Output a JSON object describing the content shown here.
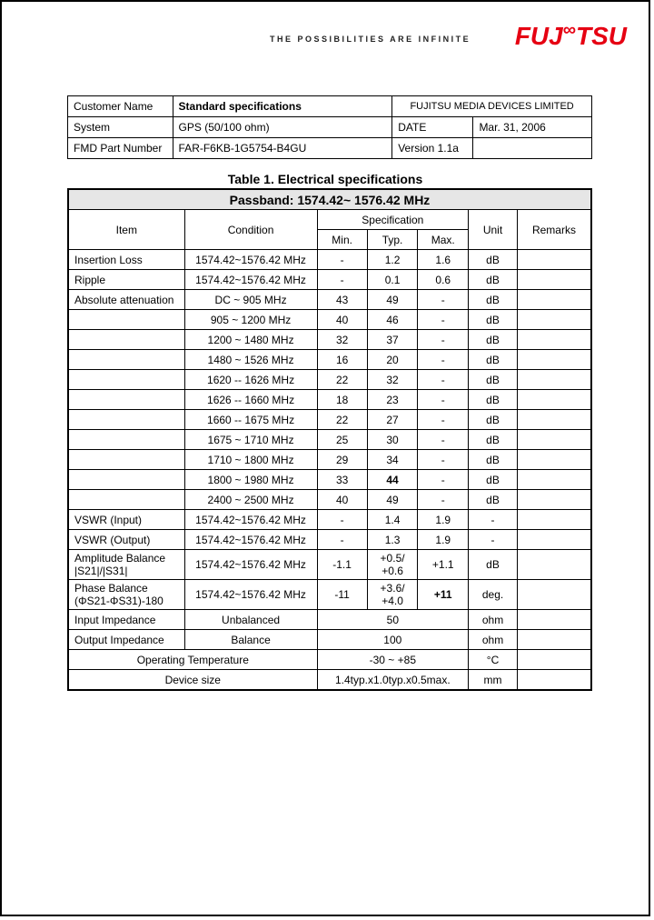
{
  "tagline": "THE POSSIBILITIES ARE INFINITE",
  "logo": "FUJITSU",
  "header": {
    "rows": [
      {
        "label": "Customer Name",
        "val": "Standard specifications",
        "valBold": true,
        "c3": "FUJITSU MEDIA DEVICES LIMITED",
        "c3span": true
      },
      {
        "label": "System",
        "val": "GPS (50/100 ohm)",
        "c3": "DATE",
        "c4": "Mar. 31, 2006"
      },
      {
        "label": "FMD Part Number",
        "val": "FAR-F6KB-1G5754-B4GU",
        "c3": "Version 1.1a",
        "c4": ""
      }
    ]
  },
  "tableTitle": "Table 1. Electrical specifications",
  "passband": "Passband: 1574.42~ 1576.42 MHz",
  "headers": {
    "item": "Item",
    "cond": "Condition",
    "spec": "Specification",
    "min": "Min.",
    "typ": "Typ.",
    "max": "Max.",
    "unit": "Unit",
    "rem": "Remarks"
  },
  "rows": [
    {
      "item": "Insertion Loss",
      "cond": "1574.42~1576.42 MHz",
      "min": "-",
      "typ": "1.2",
      "max": "1.6",
      "unit": "dB",
      "rem": ""
    },
    {
      "item": "Ripple",
      "cond": "1574.42~1576.42 MHz",
      "min": "-",
      "typ": "0.1",
      "max": "0.6",
      "unit": "dB",
      "rem": ""
    },
    {
      "item": "Absolute attenuation",
      "cond": "DC ~ 905 MHz",
      "min": "43",
      "typ": "49",
      "max": "-",
      "unit": "dB",
      "rem": ""
    },
    {
      "item": "",
      "cond": "905 ~ 1200 MHz",
      "min": "40",
      "typ": "46",
      "max": "-",
      "unit": "dB",
      "rem": ""
    },
    {
      "item": "",
      "cond": "1200 ~ 1480 MHz",
      "min": "32",
      "typ": "37",
      "max": "-",
      "unit": "dB",
      "rem": ""
    },
    {
      "item": "",
      "cond": "1480 ~ 1526 MHz",
      "min": "16",
      "typ": "20",
      "max": "-",
      "unit": "dB",
      "rem": ""
    },
    {
      "item": "",
      "cond": "1620 -- 1626 MHz",
      "min": "22",
      "typ": "32",
      "max": "-",
      "unit": "dB",
      "rem": ""
    },
    {
      "item": "",
      "cond": "1626 -- 1660 MHz",
      "min": "18",
      "typ": "23",
      "max": "-",
      "unit": "dB",
      "rem": ""
    },
    {
      "item": "",
      "cond": "1660 -- 1675 MHz",
      "min": "22",
      "typ": "27",
      "max": "-",
      "unit": "dB",
      "rem": ""
    },
    {
      "item": "",
      "cond": "1675 ~ 1710 MHz",
      "min": "25",
      "typ": "30",
      "max": "-",
      "unit": "dB",
      "rem": ""
    },
    {
      "item": "",
      "cond": "1710 ~ 1800 MHz",
      "min": "29",
      "typ": "34",
      "max": "-",
      "unit": "dB",
      "rem": ""
    },
    {
      "item": "",
      "cond": "1800 ~ 1980 MHz",
      "min": "33",
      "typ": "44",
      "typBold": true,
      "max": "-",
      "unit": "dB",
      "rem": ""
    },
    {
      "item": "",
      "cond": "2400 ~ 2500 MHz",
      "min": "40",
      "typ": "49",
      "max": "-",
      "unit": "dB",
      "rem": ""
    },
    {
      "item": "VSWR (Input)",
      "cond": "1574.42~1576.42 MHz",
      "min": "-",
      "typ": "1.4",
      "max": "1.9",
      "unit": "-",
      "rem": ""
    },
    {
      "item": "VSWR (Output)",
      "cond": "1574.42~1576.42 MHz",
      "min": "-",
      "typ": "1.3",
      "max": "1.9",
      "unit": "-",
      "rem": ""
    }
  ],
  "ampBalance": {
    "item": "Amplitude Balance |S21|/|S31|",
    "cond": "1574.42~1576.42 MHz",
    "min": "-1.1",
    "typ": "+0.5/ +0.6",
    "max": "+1.1",
    "unit": "dB",
    "rem": ""
  },
  "phaseBalance": {
    "item": "Phase Balance (ΦS21-ΦS31)-180",
    "cond": "1574.42~1576.42 MHz",
    "min": "-11",
    "typ": "+3.6/ +4.0",
    "max": "+11",
    "maxBold": true,
    "unit": "deg.",
    "rem": ""
  },
  "impedance": [
    {
      "item": "Input Impedance",
      "cond": "Unbalanced",
      "val": "50",
      "unit": "ohm",
      "rem": ""
    },
    {
      "item": "Output Impedance",
      "cond": "Balance",
      "val": "100",
      "unit": "ohm",
      "rem": ""
    }
  ],
  "last": [
    {
      "label": "Operating Temperature",
      "val": "-30 ~ +85",
      "unit": "°C",
      "rem": ""
    },
    {
      "label": "Device size",
      "val": "1.4typ.x1.0typ.x0.5max.",
      "unit": "mm",
      "rem": ""
    }
  ]
}
